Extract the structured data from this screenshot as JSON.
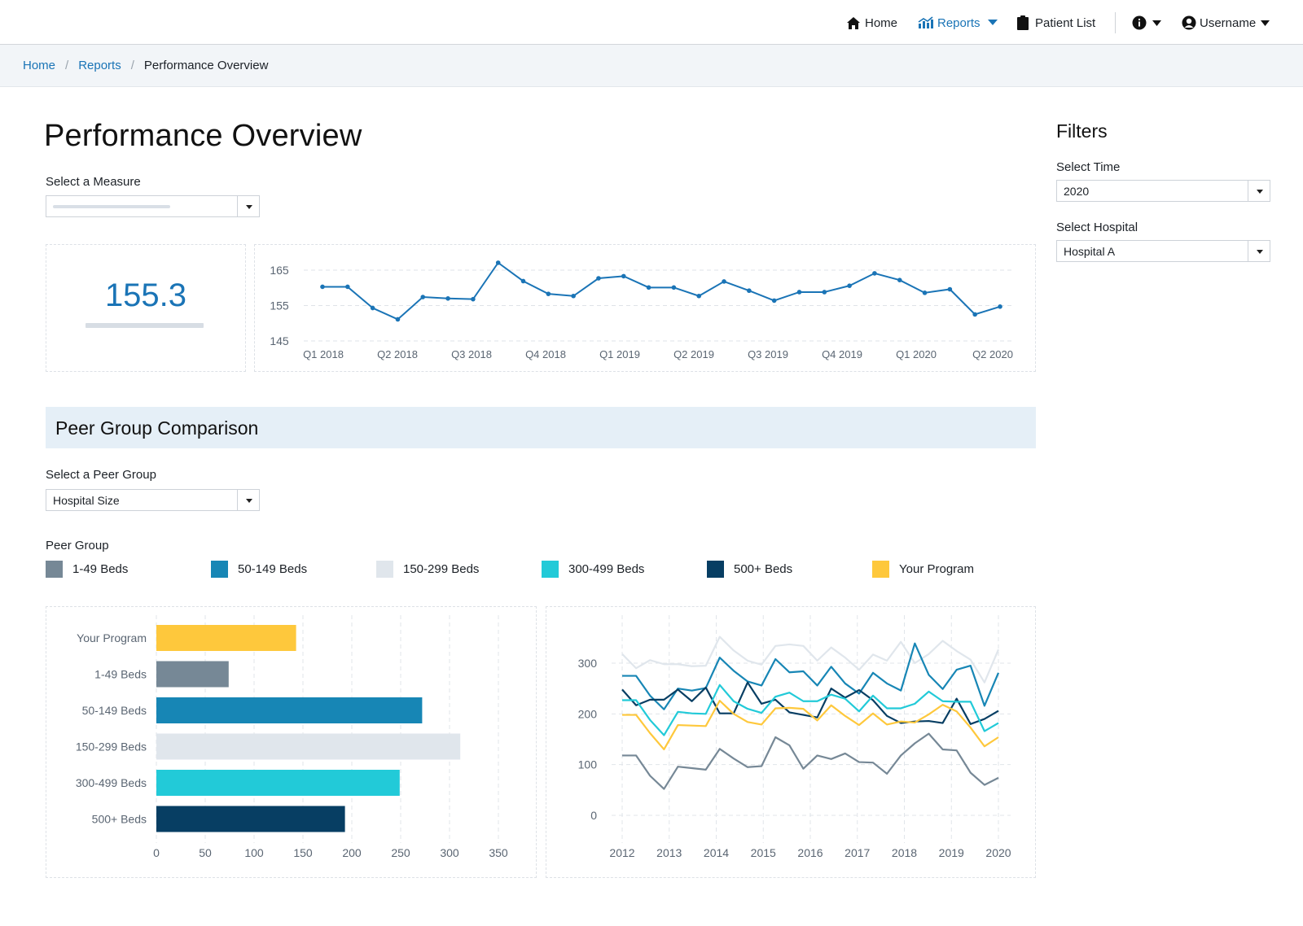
{
  "nav": {
    "home": "Home",
    "reports": "Reports",
    "patient_list": "Patient List",
    "username": "Username"
  },
  "breadcrumb": {
    "home": "Home",
    "reports": "Reports",
    "current": "Performance Overview"
  },
  "page": {
    "title": "Performance Overview",
    "measure_label": "Select a Measure",
    "measure_value": ""
  },
  "kpi": {
    "value": "155.3"
  },
  "peer": {
    "section_title": "Peer Group Comparison",
    "select_label": "Select a Peer Group",
    "select_value": "Hospital Size",
    "legend_title": "Peer Group",
    "legend": [
      {
        "label": "1-49 Beds",
        "color": "#768896"
      },
      {
        "label": "50-149 Beds",
        "color": "#1786b5"
      },
      {
        "label": "150-299 Beds",
        "color": "#e0e6ec"
      },
      {
        "label": "300-499 Beds",
        "color": "#22cad8"
      },
      {
        "label": "500+ Beds",
        "color": "#073e63"
      },
      {
        "label": "Your Program",
        "color": "#fec83c"
      }
    ]
  },
  "filters": {
    "title": "Filters",
    "time_label": "Select Time",
    "time_value": "2020",
    "hospital_label": "Select Hospital",
    "hospital_value": "Hospital A"
  },
  "chart_data": [
    {
      "type": "line",
      "title": "",
      "x_tick_labels": [
        "Q1 2018",
        "Q2 2018",
        "Q3 2018",
        "Q4 2018",
        "Q1 2019",
        "Q2 2019",
        "Q3 2019",
        "Q4 2019",
        "Q1 2020",
        "Q2 2020"
      ],
      "ylim": [
        145,
        165
      ],
      "y_ticks": [
        145,
        155,
        165
      ],
      "color": "#1a74b6",
      "series": [
        {
          "values": [
            160.3,
            160.3,
            154.3,
            151.1,
            157.4,
            157,
            156.8,
            167.1,
            161.9,
            158.3,
            157.7,
            162.7,
            163.3,
            160.1,
            160.1,
            157.7,
            161.8,
            159.2,
            156.4,
            158.8,
            158.8,
            160.6,
            164.1,
            162.2,
            158.6,
            159.6,
            152.5,
            154.7
          ]
        }
      ],
      "grid": "dashed horizontal"
    },
    {
      "type": "bar",
      "orientation": "horizontal",
      "categories": [
        "Your Program",
        "1-49 Beds",
        "50-149 Beds",
        "150-299 Beds",
        "300-499 Beds",
        "500+ Beds"
      ],
      "values": [
        143,
        74,
        272,
        311,
        249,
        193
      ],
      "colors": [
        "#fec83c",
        "#768896",
        "#1786b5",
        "#e0e6ec",
        "#22cad8",
        "#073e63"
      ],
      "xlim": [
        0,
        350
      ],
      "x_ticks": [
        0,
        50,
        100,
        150,
        200,
        250,
        300,
        350
      ],
      "grid": "dashed vertical"
    },
    {
      "type": "line",
      "x_ticks": [
        "2012",
        "2013",
        "2014",
        "2015",
        "2016",
        "2017",
        "2018",
        "2019",
        "2020"
      ],
      "ylim": [
        0,
        350
      ],
      "y_ticks": [
        0,
        100,
        200,
        300
      ],
      "grid": "dashed",
      "series": [
        {
          "name": "150-299 Beds",
          "color": "#e0e6ec",
          "values": [
            318,
            290,
            306,
            298,
            298,
            294,
            295,
            352,
            325,
            305,
            297,
            334,
            337,
            334,
            305,
            331,
            311,
            287,
            317,
            305,
            342,
            300,
            318,
            344,
            324,
            307,
            262,
            327
          ]
        },
        {
          "name": "50-149 Beds",
          "color": "#1786b5",
          "values": [
            275,
            275,
            236,
            209,
            250,
            246,
            251,
            311,
            285,
            264,
            256,
            308,
            282,
            284,
            256,
            293,
            260,
            240,
            281,
            260,
            246,
            339,
            277,
            249,
            287,
            295,
            216,
            281
          ]
        },
        {
          "name": "500+ Beds",
          "color": "#073e63",
          "values": [
            248,
            217,
            228,
            228,
            248,
            225,
            252,
            201,
            201,
            262,
            220,
            228,
            203,
            198,
            193,
            250,
            232,
            247,
            227,
            196,
            182,
            185,
            186,
            182,
            230,
            180,
            190,
            206
          ]
        },
        {
          "name": "300-499 Beds",
          "color": "#22cad8",
          "values": [
            227,
            227,
            188,
            158,
            204,
            201,
            200,
            257,
            225,
            210,
            202,
            234,
            242,
            225,
            225,
            238,
            230,
            205,
            236,
            211,
            211,
            220,
            244,
            225,
            224,
            224,
            166,
            182
          ]
        },
        {
          "name": "Your Program",
          "color": "#fec83c",
          "values": [
            198,
            198,
            162,
            130,
            178,
            177,
            176,
            226,
            200,
            184,
            179,
            211,
            212,
            210,
            187,
            217,
            196,
            178,
            201,
            179,
            185,
            183,
            199,
            218,
            205,
            173,
            136,
            154
          ]
        },
        {
          "name": "1-49 Beds",
          "color": "#768896",
          "values": [
            118,
            118,
            78,
            52,
            96,
            93,
            90,
            131,
            112,
            95,
            97,
            154,
            138,
            92,
            118,
            111,
            122,
            105,
            104,
            82,
            118,
            142,
            161,
            130,
            128,
            84,
            60,
            74
          ]
        }
      ]
    }
  ]
}
